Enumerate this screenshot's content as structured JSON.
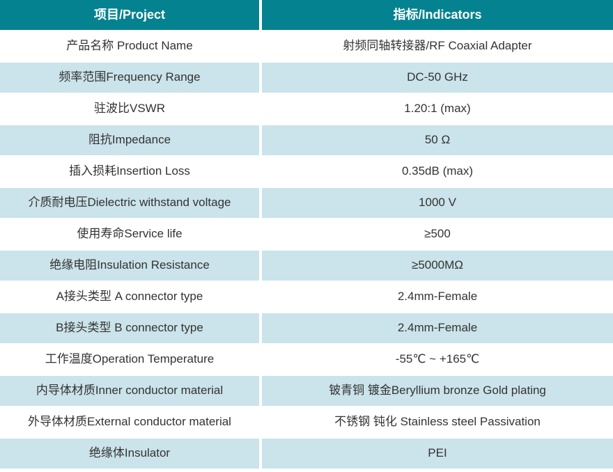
{
  "table": {
    "header": {
      "project": "项目/Project",
      "indicator": "指标/Indicators"
    },
    "rows": [
      {
        "project": "产品名称 Product Name",
        "indicator": "射频同轴转接器/RF Coaxial Adapter"
      },
      {
        "project": "频率范围Frequency Range",
        "indicator": "DC-50 GHz"
      },
      {
        "project": "驻波比VSWR",
        "indicator": "1.20:1 (max)"
      },
      {
        "project": "阻抗Impedance",
        "indicator": "50 Ω"
      },
      {
        "project": "插入损耗Insertion Loss",
        "indicator": "0.35dB (max)"
      },
      {
        "project": "介质耐电压Dielectric withstand voltage",
        "indicator": "1000 V"
      },
      {
        "project": "使用寿命Service life",
        "indicator": "≥500"
      },
      {
        "project": "绝缘电阻Insulation Resistance",
        "indicator": "≥5000MΩ"
      },
      {
        "project": "A接头类型 A connector type",
        "indicator": "2.4mm-Female"
      },
      {
        "project": "B接头类型 B connector type",
        "indicator": "2.4mm-Female"
      },
      {
        "project": "工作温度Operation Temperature",
        "indicator": "-55℃ ~ +165℃"
      },
      {
        "project": "内导体材质Inner conductor material",
        "indicator": "铍青铜 镀金Beryllium bronze Gold plating"
      },
      {
        "project": "外导体材质External conductor material",
        "indicator": "不锈钢 钝化 Stainless steel Passivation"
      },
      {
        "project": "绝缘体Insulator",
        "indicator": "PEI"
      }
    ]
  },
  "colors": {
    "header_bg": "#05828F",
    "header_text": "#FFFFFF",
    "alt_row_bg": "#CBE3EA",
    "plain_row_bg": "#FFFFFF",
    "body_text": "#333333"
  }
}
